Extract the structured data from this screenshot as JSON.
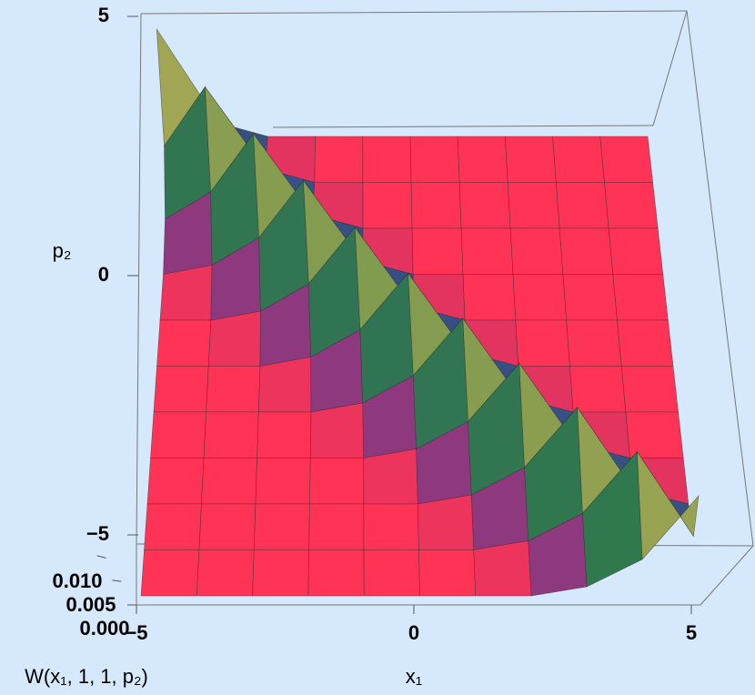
{
  "chart_data": {
    "type": "surface3d",
    "xlabel": "x₁",
    "ylabel": "p₂",
    "zlabel": "W(x₁, 1, 1, p₂)",
    "x": [
      -5,
      -4,
      -3,
      -2,
      -1,
      0,
      1,
      2,
      3,
      4,
      5
    ],
    "y": [
      5,
      4,
      3,
      2,
      1,
      0,
      -1,
      -2,
      -3,
      -4,
      -5
    ],
    "z": [
      [
        0.0118,
        0.0015,
        0,
        0,
        0,
        0,
        0,
        0,
        0,
        0,
        0
      ],
      [
        0.004,
        0.0105,
        0.0015,
        0,
        0,
        0,
        0,
        0,
        0,
        0,
        0
      ],
      [
        0.001,
        0.004,
        0.0104,
        0.0015,
        0,
        0,
        0,
        0,
        0,
        0,
        0
      ],
      [
        0,
        0.001,
        0.004,
        0.0103,
        0.0015,
        0,
        0,
        0,
        0,
        0,
        0
      ],
      [
        0,
        0,
        0.001,
        0.004,
        0.0102,
        0.0015,
        0,
        0,
        0,
        0,
        0
      ],
      [
        0,
        0,
        0,
        0.001,
        0.004,
        0.0102,
        0.0015,
        0,
        0,
        0,
        0
      ],
      [
        0,
        0,
        0,
        0,
        0.001,
        0.004,
        0.0103,
        0.0015,
        0,
        0,
        0
      ],
      [
        0,
        0,
        0,
        0,
        0,
        0.001,
        0.004,
        0.0104,
        0.0015,
        0,
        0
      ],
      [
        0,
        0,
        0,
        0,
        0,
        0,
        0.001,
        0.004,
        0.0106,
        0.0015,
        0
      ],
      [
        0,
        0,
        0,
        0,
        0,
        0,
        0,
        0.001,
        0.004,
        0.0108,
        0.0015
      ],
      [
        0,
        0,
        0,
        0,
        0,
        0,
        0,
        0,
        0.001,
        0.004,
        0.011
      ]
    ],
    "xlim": [
      -5,
      5
    ],
    "xticks": [
      {
        "value": -5,
        "label": "−5"
      },
      0,
      5
    ],
    "ylim": [
      -5,
      5
    ],
    "yticks": [
      {
        "value": -5,
        "label": "−5"
      },
      0,
      5
    ],
    "zlim": [
      0,
      0.012
    ],
    "zticks": [
      {
        "value": 0,
        "label": "0.000"
      },
      {
        "value": 0.005,
        "label": "0.005"
      },
      {
        "value": 0.01,
        "label": "0.010"
      }
    ],
    "colorscale": [
      "#ff3355",
      "#3b3d9c",
      "#2f7f45",
      "#d9b95a",
      "#f6eec4"
    ],
    "mesh_color": "#2a2a2a"
  }
}
